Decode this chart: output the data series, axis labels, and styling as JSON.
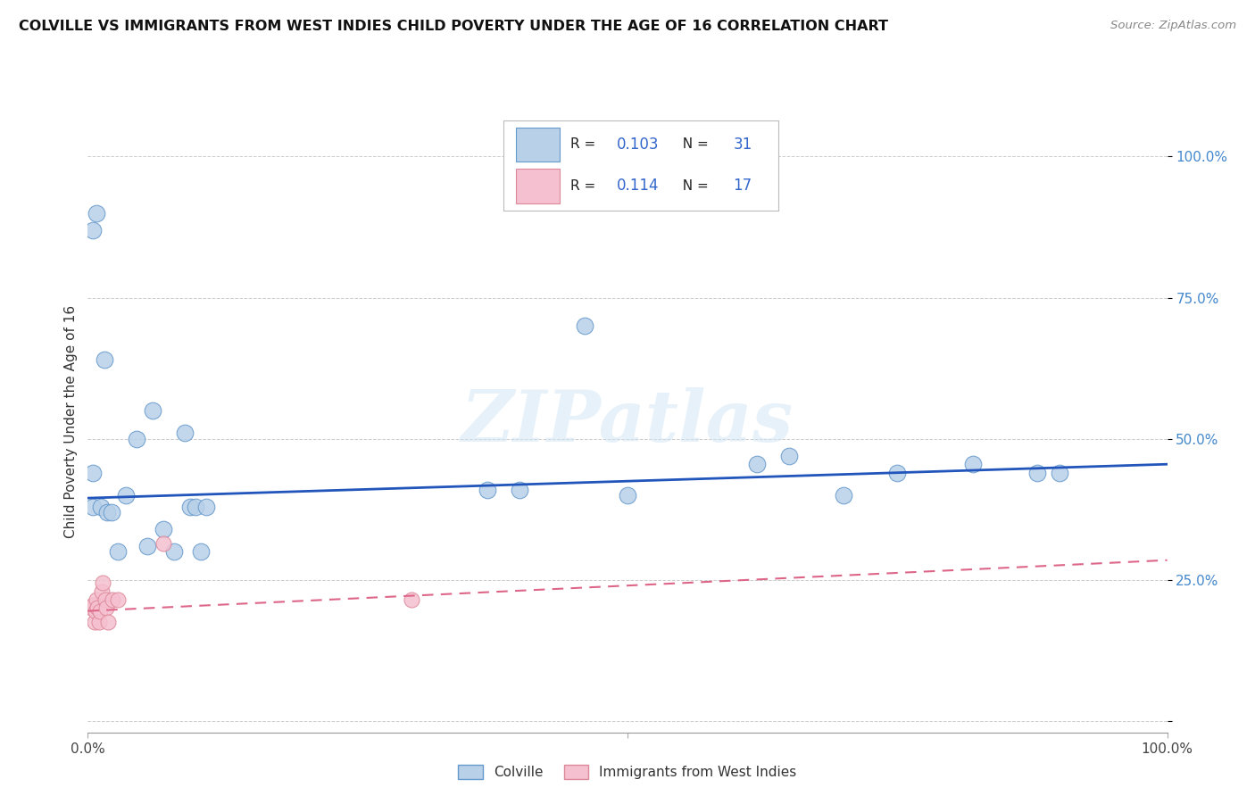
{
  "title": "COLVILLE VS IMMIGRANTS FROM WEST INDIES CHILD POVERTY UNDER THE AGE OF 16 CORRELATION CHART",
  "source": "Source: ZipAtlas.com",
  "ylabel": "Child Poverty Under the Age of 16",
  "xlim": [
    0.0,
    1.0
  ],
  "ylim": [
    -0.02,
    1.08
  ],
  "legend_r1": "R = 0.103",
  "legend_n1": "N = 31",
  "legend_r2": "R = 0.114",
  "legend_n2": "N = 17",
  "colville_color": "#b8d0e8",
  "colville_edge": "#6699cc",
  "immigrants_color": "#f5c0d0",
  "immigrants_edge": "#dd8899",
  "blue_line_color": "#2255bb",
  "pink_line_color": "#dd6688",
  "watermark": "ZIPatlas",
  "colville_x": [
    0.005,
    0.012,
    0.018,
    0.005,
    0.008,
    0.015,
    0.022,
    0.028,
    0.035,
    0.045,
    0.055,
    0.06,
    0.07,
    0.08,
    0.09,
    0.095,
    0.1,
    0.105,
    0.11,
    0.37,
    0.4,
    0.46,
    0.5,
    0.62,
    0.65,
    0.7,
    0.75,
    0.82,
    0.88,
    0.9,
    0.005
  ],
  "colville_y": [
    0.38,
    0.38,
    0.37,
    0.87,
    0.9,
    0.64,
    0.37,
    0.3,
    0.4,
    0.5,
    0.31,
    0.55,
    0.34,
    0.3,
    0.51,
    0.38,
    0.38,
    0.3,
    0.38,
    0.41,
    0.41,
    0.7,
    0.4,
    0.455,
    0.47,
    0.4,
    0.44,
    0.455,
    0.44,
    0.44,
    0.44
  ],
  "immigrants_x": [
    0.003,
    0.005,
    0.006,
    0.007,
    0.008,
    0.009,
    0.01,
    0.011,
    0.013,
    0.014,
    0.016,
    0.017,
    0.019,
    0.023,
    0.028,
    0.07,
    0.3
  ],
  "immigrants_y": [
    0.2,
    0.205,
    0.175,
    0.195,
    0.215,
    0.2,
    0.175,
    0.195,
    0.23,
    0.245,
    0.215,
    0.2,
    0.175,
    0.215,
    0.215,
    0.315,
    0.215
  ],
  "blue_line_y_start": 0.395,
  "blue_line_y_end": 0.455,
  "pink_line_y_start": 0.195,
  "pink_line_y_end": 0.285,
  "ytick_positions": [
    0.0,
    0.25,
    0.5,
    0.75,
    1.0
  ],
  "ytick_labels": [
    "",
    "25.0%",
    "50.0%",
    "75.0%",
    "100.0%"
  ],
  "xtick_positions": [
    0.0,
    0.5,
    1.0
  ],
  "xtick_labels": [
    "0.0%",
    "",
    "100.0%"
  ]
}
